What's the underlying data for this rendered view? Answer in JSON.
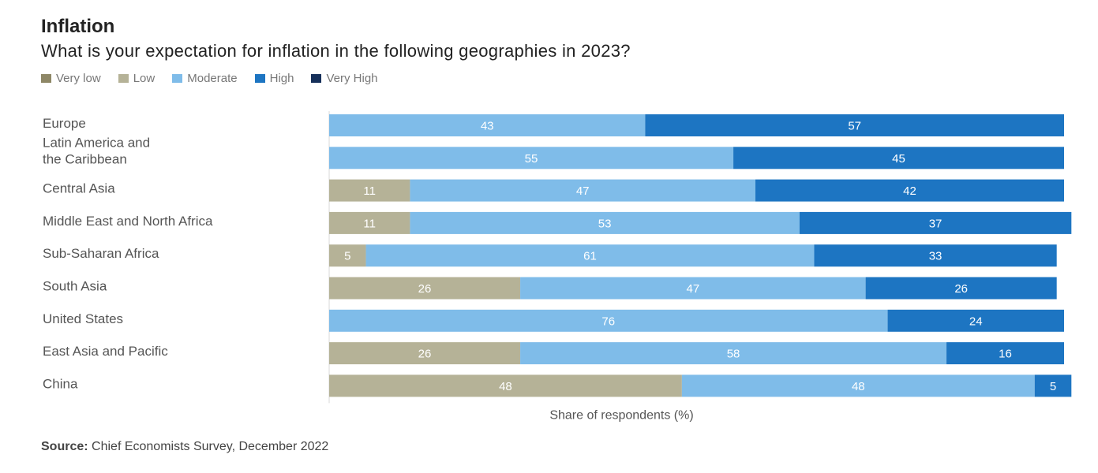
{
  "title": "Inflation",
  "subtitle": "What is your expectation for inflation in the following geographies in 2023?",
  "source_label": "Source:",
  "source_text": "Chief Economists Survey, December 2022",
  "chart_data": {
    "type": "bar",
    "orientation": "horizontal",
    "stacked": true,
    "xlabel": "Share of respondents (%)",
    "xlim": [
      0,
      100
    ],
    "legend_placement": "top-left",
    "categories": [
      [
        "Europe"
      ],
      [
        "Latin America and",
        "the Caribbean"
      ],
      [
        "Central Asia"
      ],
      [
        "Middle East and North Africa"
      ],
      [
        "Sub-Saharan Africa"
      ],
      [
        "South Asia"
      ],
      [
        "United States"
      ],
      [
        "East Asia and Pacific"
      ],
      [
        "China"
      ]
    ],
    "series": [
      {
        "name": "Very low",
        "color": "#8e8766",
        "values": [
          0,
          0,
          0,
          0,
          0,
          0,
          0,
          0,
          0
        ]
      },
      {
        "name": "Low",
        "color": "#b5b297",
        "values": [
          0,
          0,
          11,
          11,
          5,
          26,
          0,
          26,
          48
        ]
      },
      {
        "name": "Moderate",
        "color": "#7fbce9",
        "values": [
          43,
          55,
          47,
          53,
          61,
          47,
          76,
          58,
          48
        ]
      },
      {
        "name": "High",
        "color": "#1d75c2",
        "values": [
          57,
          45,
          42,
          37,
          33,
          26,
          24,
          16,
          5
        ]
      },
      {
        "name": "Very High",
        "color": "#16305a",
        "values": [
          0,
          0,
          0,
          0,
          0,
          0,
          0,
          0,
          0
        ]
      }
    ]
  }
}
